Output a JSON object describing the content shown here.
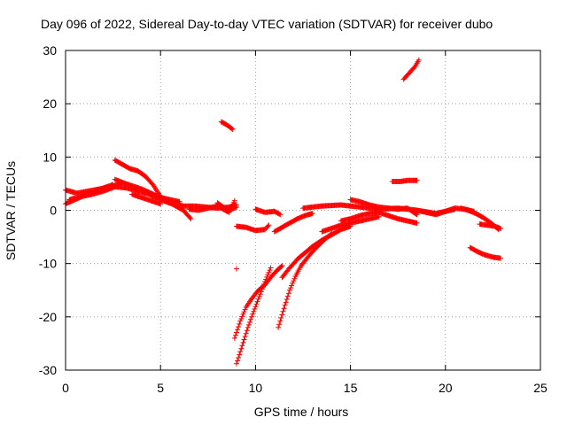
{
  "chart_data": {
    "type": "scatter",
    "title": "Day 096 of 2022, Sidereal Day-to-day VTEC variation (SDTVAR) for receiver dubo",
    "xlabel": "GPS time / hours",
    "ylabel": "SDTVAR / TECUs",
    "xlim": [
      0,
      25
    ],
    "ylim": [
      -30,
      30
    ],
    "xticks": [
      0,
      5,
      10,
      15,
      20,
      25
    ],
    "yticks": [
      -30,
      -20,
      -10,
      0,
      10,
      20,
      30
    ],
    "xtick_labels": [
      "0",
      "5",
      "10",
      "15",
      "20",
      "25"
    ],
    "ytick_labels": [
      "-30",
      "-20",
      "-10",
      "0",
      "10",
      "20",
      "30"
    ],
    "grid": true,
    "marker": "+",
    "colors": {
      "points": "#ff0000",
      "grid": "#a0a0a0",
      "axis": "#000000"
    },
    "segments": [
      {
        "x": [
          0.0,
          0.5,
          1.0,
          1.5,
          2.0,
          2.5
        ],
        "y": [
          1.2,
          2.0,
          2.8,
          3.4,
          4.2,
          4.8
        ]
      },
      {
        "x": [
          0.0,
          0.6,
          1.2,
          1.8,
          2.4,
          3.0
        ],
        "y": [
          3.8,
          3.2,
          3.6,
          4.0,
          4.4,
          5.2
        ]
      },
      {
        "x": [
          0.2,
          0.8,
          1.4,
          2.0,
          2.6,
          3.2,
          3.8,
          4.4,
          5.0,
          5.6,
          6.2,
          6.6
        ],
        "y": [
          2.0,
          2.6,
          3.0,
          3.6,
          4.4,
          4.2,
          3.6,
          3.0,
          2.0,
          1.2,
          0.0,
          -1.6
        ]
      },
      {
        "x": [
          2.6,
          3.0,
          3.5,
          4.0,
          4.5,
          5.0,
          5.5,
          6.0
        ],
        "y": [
          5.8,
          5.2,
          4.6,
          4.0,
          3.2,
          2.4,
          2.0,
          1.6
        ]
      },
      {
        "x": [
          2.6,
          3.0,
          3.4,
          3.8,
          4.2,
          4.6,
          5.0
        ],
        "y": [
          9.4,
          8.6,
          7.8,
          7.4,
          6.4,
          4.8,
          2.6
        ]
      },
      {
        "x": [
          3.5,
          4.0,
          4.5,
          5.0
        ],
        "y": [
          3.0,
          2.4,
          1.8,
          1.2
        ]
      },
      {
        "x": [
          5.0,
          5.6,
          6.2,
          6.8,
          7.4,
          8.0,
          8.6,
          9.0
        ],
        "y": [
          2.0,
          1.4,
          0.8,
          0.8,
          0.6,
          0.4,
          0.6,
          1.0
        ]
      },
      {
        "x": [
          6.5,
          7.0,
          7.5,
          8.0,
          8.5,
          9.0
        ],
        "y": [
          0.2,
          0.0,
          0.4,
          0.8,
          -0.2,
          0.6
        ]
      },
      {
        "x": [
          8.0,
          8.3,
          8.6,
          8.9
        ],
        "y": [
          1.4,
          0.6,
          -0.4,
          1.8
        ]
      },
      {
        "x": [
          8.2,
          8.5,
          8.8
        ],
        "y": [
          16.6,
          16.0,
          15.2
        ]
      },
      {
        "x": [
          9.0,
          9.5,
          10.0,
          10.5,
          10.7
        ],
        "y": [
          -3.0,
          -3.2,
          -3.8,
          -3.6,
          -2.8
        ]
      },
      {
        "x": [
          10.0,
          10.5,
          11.0,
          11.3
        ],
        "y": [
          0.2,
          -0.4,
          -0.2,
          -0.8
        ]
      },
      {
        "x": [
          9.0
        ],
        "y": [
          -11.0
        ]
      },
      {
        "x": [
          9.0,
          9.3,
          9.6,
          9.9,
          10.2,
          10.5,
          10.8
        ],
        "y": [
          -28.8,
          -25.4,
          -22.0,
          -19.0,
          -16.2,
          -13.4,
          -10.8
        ]
      },
      {
        "x": [
          8.9,
          9.2,
          9.5,
          9.8,
          10.1,
          10.5,
          10.8,
          11.1,
          11.4
        ],
        "y": [
          -24.0,
          -20.8,
          -18.2,
          -16.6,
          -15.2,
          -14.0,
          -12.6,
          -11.4,
          -10.4
        ]
      },
      {
        "x": [
          11.0,
          11.3,
          11.6,
          11.9,
          12.2,
          12.6,
          13.0
        ],
        "y": [
          -4.0,
          -3.4,
          -2.8,
          -2.2,
          -1.6,
          -1.0,
          -0.6
        ]
      },
      {
        "x": [
          11.2,
          11.5,
          11.8,
          12.1,
          12.4,
          12.8,
          13.2,
          13.6,
          14.0
        ],
        "y": [
          -22.0,
          -18.4,
          -15.0,
          -12.4,
          -10.4,
          -8.6,
          -7.0,
          -5.6,
          -4.4
        ]
      },
      {
        "x": [
          11.4,
          11.8,
          12.2,
          12.6,
          13.0,
          13.5,
          14.0,
          14.5,
          15.0
        ],
        "y": [
          -12.6,
          -10.8,
          -9.2,
          -8.0,
          -6.8,
          -5.6,
          -4.6,
          -3.6,
          -3.0
        ]
      },
      {
        "x": [
          12.5,
          13.5,
          14.5,
          15.5,
          16.5,
          17.5,
          18.5,
          19.5,
          20.5
        ],
        "y": [
          0.4,
          0.8,
          1.0,
          0.6,
          0.2,
          0.4,
          0.0,
          -0.6,
          0.2
        ]
      },
      {
        "x": [
          13.5,
          14.0,
          14.5,
          15.0,
          15.5,
          16.0,
          16.5
        ],
        "y": [
          -4.0,
          -3.4,
          -2.8,
          -2.4,
          -2.0,
          -1.6,
          -1.2
        ]
      },
      {
        "x": [
          15.0,
          15.5,
          16.0,
          16.5,
          17.0,
          17.5,
          18.0,
          18.5
        ],
        "y": [
          2.0,
          1.6,
          1.0,
          0.6,
          0.4,
          0.2,
          0.4,
          -0.8
        ]
      },
      {
        "x": [
          14.5,
          15.0,
          15.5,
          16.0,
          16.5,
          17.0,
          17.5,
          18.0,
          18.5
        ],
        "y": [
          -2.0,
          -1.6,
          -1.0,
          -0.6,
          -0.4,
          -1.0,
          -1.6,
          -2.0,
          -2.4
        ]
      },
      {
        "x": [
          17.2,
          17.6,
          18.0,
          18.5
        ],
        "y": [
          5.4,
          5.4,
          5.6,
          5.6
        ]
      },
      {
        "x": [
          17.8,
          18.1,
          18.4,
          18.6
        ],
        "y": [
          24.6,
          25.8,
          27.0,
          28.2
        ]
      },
      {
        "x": [
          18.5,
          19.0,
          19.5,
          20.0,
          20.5,
          21.0,
          21.5
        ],
        "y": [
          0.0,
          -0.4,
          -0.8,
          -0.2,
          0.4,
          0.2,
          -0.2
        ]
      },
      {
        "x": [
          20.8,
          21.2,
          21.6,
          22.0,
          22.4,
          22.8
        ],
        "y": [
          0.4,
          0.0,
          -0.6,
          -1.4,
          -2.4,
          -3.6
        ]
      },
      {
        "x": [
          21.3,
          21.7,
          22.1,
          22.5,
          22.9
        ],
        "y": [
          -7.0,
          -7.8,
          -8.4,
          -8.8,
          -9.0
        ]
      },
      {
        "x": [
          21.8,
          22.2,
          22.6,
          22.9
        ],
        "y": [
          -2.6,
          -2.8,
          -3.0,
          -3.4
        ]
      }
    ]
  }
}
